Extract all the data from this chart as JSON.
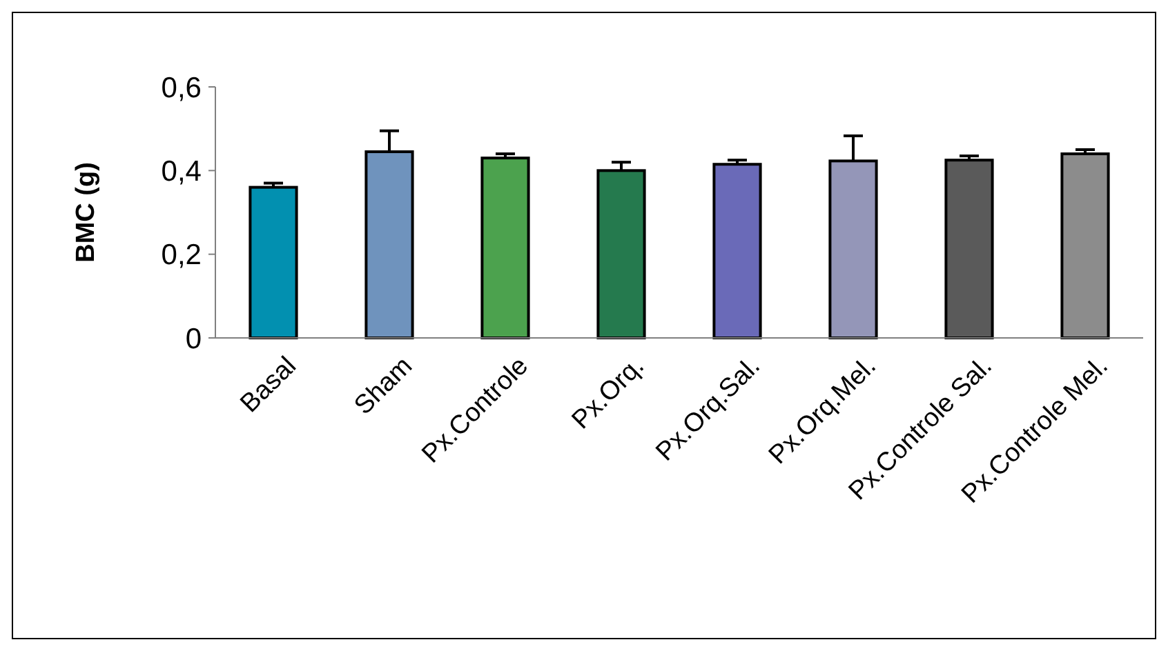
{
  "chart_data": {
    "type": "bar",
    "ylabel": "BMC (g)",
    "categories": [
      "Basal",
      "Sham",
      "Px.Controle",
      "Px.Orq.",
      "Px.Orq.Sal.",
      "Px.Orq.Mel.",
      "Px.Controle Sal.",
      "Px.Controle Mel."
    ],
    "values": [
      0.36,
      0.445,
      0.43,
      0.4,
      0.415,
      0.423,
      0.425,
      0.44
    ],
    "errors": [
      0.01,
      0.05,
      0.01,
      0.02,
      0.01,
      0.06,
      0.01,
      0.01
    ],
    "colors": [
      "#0290b0",
      "#6f93bd",
      "#4ca24e",
      "#257a4e",
      "#6a6ab8",
      "#9496b8",
      "#5a5a5a",
      "#8c8c8c"
    ],
    "ylim": [
      0,
      0.6
    ],
    "yticks": [
      {
        "value": 0,
        "label": "0"
      },
      {
        "value": 0.2,
        "label": "0,2"
      },
      {
        "value": 0.4,
        "label": "0,4"
      },
      {
        "value": 0.6,
        "label": "0,6"
      }
    ],
    "grid": false
  }
}
